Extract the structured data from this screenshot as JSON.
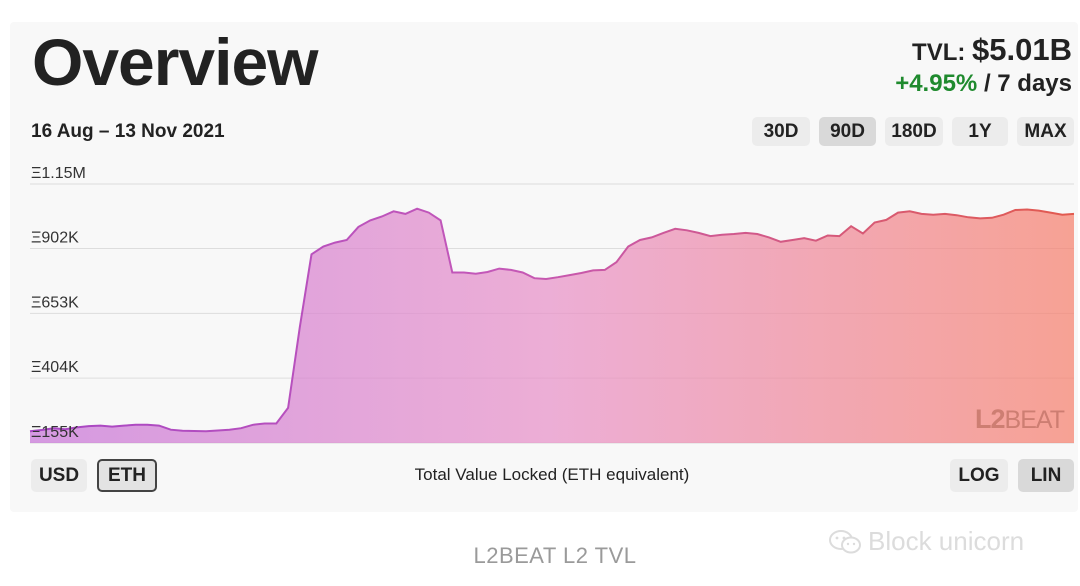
{
  "header": {
    "title": "Overview",
    "tvl_label": "TVL:",
    "tvl_value": "$5.01B",
    "change_pct": "+4.95%",
    "change_period": "/ 7 days",
    "date_range": "16 Aug – 13 Nov 2021"
  },
  "timeframes": [
    "30D",
    "90D",
    "180D",
    "1Y",
    "MAX"
  ],
  "active_timeframe": "90D",
  "currency_buttons": {
    "usd": "USD",
    "eth": "ETH",
    "active": "ETH"
  },
  "scale_buttons": {
    "log": "LOG",
    "lin": "LIN",
    "active": "LIN"
  },
  "chart_caption": "Total Value Locked (ETH equivalent)",
  "watermark_logo": {
    "l2": "L2",
    "beat": "BEAT"
  },
  "footer_caption": "L2BEAT L2 TVL",
  "brand_watermark": "Block unicorn",
  "colors": {
    "gradient_start": "#c774d8",
    "gradient_mid": "#e891c8",
    "gradient_end": "#f6806d",
    "positive": "#1f8a2e",
    "gridline": "#dddddd"
  },
  "chart_data": {
    "type": "area",
    "title": "",
    "xlabel": "Total Value Locked (ETH equivalent)",
    "ylabel": "",
    "x_range": [
      "2021-08-16",
      "2021-11-13"
    ],
    "ylim": [
      155000,
      1150000
    ],
    "y_ticks": [
      {
        "value": 1150000,
        "label": "Ξ1.15M"
      },
      {
        "value": 902000,
        "label": "Ξ902K"
      },
      {
        "value": 653000,
        "label": "Ξ653K"
      },
      {
        "value": 404000,
        "label": "Ξ404K"
      },
      {
        "value": 155000,
        "label": "Ξ155K"
      }
    ],
    "grid": true,
    "scale": "linear",
    "series": [
      {
        "x": [
          "2021-08-16",
          "2021-08-17",
          "2021-08-18",
          "2021-08-19",
          "2021-08-20",
          "2021-08-21",
          "2021-08-22",
          "2021-08-23",
          "2021-08-24",
          "2021-08-25",
          "2021-08-26",
          "2021-08-27",
          "2021-08-28",
          "2021-08-29",
          "2021-08-30",
          "2021-08-31",
          "2021-09-01",
          "2021-09-02",
          "2021-09-03",
          "2021-09-04",
          "2021-09-05",
          "2021-09-06",
          "2021-09-07",
          "2021-09-08",
          "2021-09-09",
          "2021-09-10",
          "2021-09-11",
          "2021-09-12",
          "2021-09-13",
          "2021-09-14",
          "2021-09-15",
          "2021-09-16",
          "2021-09-17",
          "2021-09-18",
          "2021-09-19",
          "2021-09-20",
          "2021-09-21",
          "2021-09-22",
          "2021-09-23",
          "2021-09-24",
          "2021-09-25",
          "2021-09-26",
          "2021-09-27",
          "2021-09-28",
          "2021-09-29",
          "2021-09-30",
          "2021-10-01",
          "2021-10-02",
          "2021-10-03",
          "2021-10-04",
          "2021-10-05",
          "2021-10-06",
          "2021-10-07",
          "2021-10-08",
          "2021-10-09",
          "2021-10-10",
          "2021-10-11",
          "2021-10-12",
          "2021-10-13",
          "2021-10-14",
          "2021-10-15",
          "2021-10-16",
          "2021-10-17",
          "2021-10-18",
          "2021-10-19",
          "2021-10-20",
          "2021-10-21",
          "2021-10-22",
          "2021-10-23",
          "2021-10-24",
          "2021-10-25",
          "2021-10-26",
          "2021-10-27",
          "2021-10-28",
          "2021-10-29",
          "2021-10-30",
          "2021-10-31",
          "2021-11-01",
          "2021-11-02",
          "2021-11-03",
          "2021-11-04",
          "2021-11-05",
          "2021-11-06",
          "2021-11-07",
          "2021-11-08",
          "2021-11-09",
          "2021-11-10",
          "2021-11-11",
          "2021-11-12",
          "2021-11-13"
        ],
        "y": [
          200000,
          205000,
          212000,
          208000,
          215000,
          220000,
          222000,
          218000,
          222000,
          225000,
          225000,
          222000,
          206000,
          202000,
          201000,
          200000,
          203000,
          206000,
          212000,
          225000,
          230000,
          230000,
          290000,
          600000,
          880000,
          910000,
          925000,
          935000,
          985000,
          1010000,
          1025000,
          1045000,
          1035000,
          1055000,
          1040000,
          1010000,
          810000,
          810000,
          805000,
          812000,
          825000,
          820000,
          810000,
          788000,
          785000,
          792000,
          800000,
          808000,
          818000,
          820000,
          850000,
          910000,
          935000,
          945000,
          962000,
          978000,
          972000,
          962000,
          950000,
          955000,
          958000,
          962000,
          958000,
          945000,
          928000,
          935000,
          942000,
          932000,
          952000,
          950000,
          988000,
          960000,
          1002000,
          1012000,
          1040000,
          1045000,
          1035000,
          1032000,
          1035000,
          1030000,
          1022000,
          1018000,
          1020000,
          1032000,
          1050000,
          1052000,
          1048000,
          1040000,
          1032000,
          1035000
        ]
      }
    ]
  }
}
